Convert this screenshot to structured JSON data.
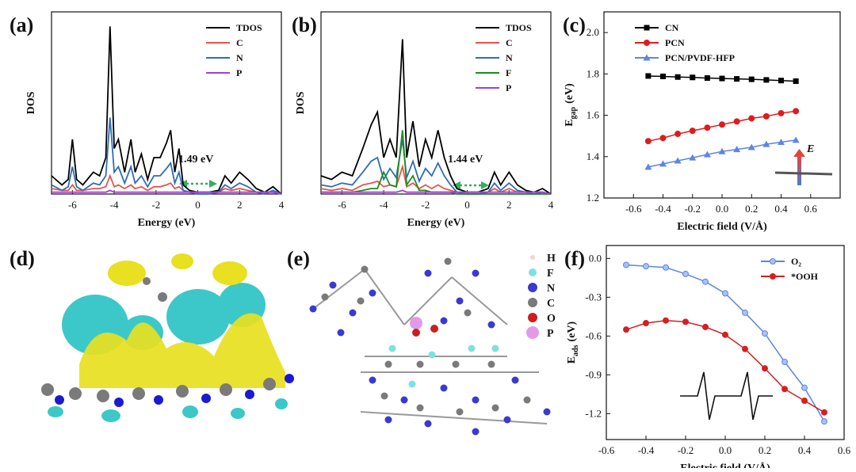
{
  "chart_data": [
    {
      "type": "line",
      "panel_label": "(a)",
      "xlabel": "Energy (eV)",
      "ylabel": "DOS",
      "annotation": "1.49 eV",
      "xlim": [
        -7,
        4
      ],
      "xticks": [
        -6,
        -4,
        -2,
        0,
        2,
        4
      ],
      "ylim": [
        0,
        1
      ],
      "legend": "upper right",
      "x": [
        -7,
        -6.5,
        -6.2,
        -6,
        -5.8,
        -5.5,
        -5,
        -4.7,
        -4.4,
        -4.2,
        -4.0,
        -3.8,
        -3.5,
        -3.2,
        -3,
        -2.7,
        -2.4,
        -2.1,
        -1.8,
        -1.5,
        -1.3,
        -1.1,
        -0.9,
        -0.7,
        -0.4,
        0,
        0.5,
        1,
        1.3,
        1.6,
        2,
        2.4,
        2.8,
        3.2,
        3.6,
        4
      ],
      "series": [
        {
          "name": "TDOS",
          "color": "#000000",
          "values": [
            0.1,
            0.05,
            0.08,
            0.3,
            0.08,
            0.05,
            0.12,
            0.1,
            0.2,
            0.92,
            0.25,
            0.3,
            0.12,
            0.3,
            0.12,
            0.22,
            0.08,
            0.2,
            0.2,
            0.28,
            0.35,
            0.12,
            0.25,
            0.05,
            0.02,
            0.01,
            0.01,
            0.02,
            0.1,
            0.06,
            0.12,
            0.08,
            0.03,
            0.01,
            0.04,
            0.0
          ]
        },
        {
          "name": "C",
          "color": "#e8534a",
          "values": [
            0.03,
            0.02,
            0.02,
            0.05,
            0.02,
            0.02,
            0.03,
            0.03,
            0.04,
            0.1,
            0.04,
            0.05,
            0.03,
            0.05,
            0.03,
            0.04,
            0.02,
            0.04,
            0.04,
            0.05,
            0.06,
            0.03,
            0.04,
            0.02,
            0.01,
            0.01,
            0.01,
            0.01,
            0.03,
            0.02,
            0.03,
            0.02,
            0.01,
            0.01,
            0.01,
            0.0
          ]
        },
        {
          "name": "N",
          "color": "#2e6db8",
          "values": [
            0.05,
            0.02,
            0.04,
            0.15,
            0.04,
            0.02,
            0.06,
            0.05,
            0.1,
            0.42,
            0.12,
            0.15,
            0.06,
            0.15,
            0.06,
            0.1,
            0.04,
            0.1,
            0.1,
            0.14,
            0.17,
            0.06,
            0.12,
            0.02,
            0.01,
            0.0,
            0.0,
            0.01,
            0.05,
            0.03,
            0.06,
            0.04,
            0.01,
            0.0,
            0.02,
            0.0
          ]
        },
        {
          "name": "P",
          "color": "#a23fd6",
          "values": [
            0.01,
            0.01,
            0.01,
            0.01,
            0.01,
            0.01,
            0.01,
            0.01,
            0.01,
            0.02,
            0.01,
            0.01,
            0.01,
            0.01,
            0.01,
            0.01,
            0.01,
            0.01,
            0.01,
            0.01,
            0.01,
            0.01,
            0.01,
            0.01,
            0.01,
            0.01,
            0.01,
            0.01,
            0.01,
            0.01,
            0.01,
            0.01,
            0.01,
            0.01,
            0.01,
            0.0
          ]
        }
      ]
    },
    {
      "type": "line",
      "panel_label": "(b)",
      "xlabel": "Energy (eV)",
      "ylabel": "DOS",
      "annotation": "1.44 eV",
      "xlim": [
        -7,
        4
      ],
      "xticks": [
        -6,
        -4,
        -2,
        0,
        2,
        4
      ],
      "ylim": [
        0,
        1
      ],
      "legend": "upper right",
      "x": [
        -7,
        -6.5,
        -6,
        -5.5,
        -5,
        -4.6,
        -4.3,
        -4,
        -3.7,
        -3.4,
        -3.1,
        -2.9,
        -2.6,
        -2.3,
        -2,
        -1.7,
        -1.4,
        -1.1,
        -0.8,
        -0.5,
        0,
        0.5,
        1,
        1.3,
        1.6,
        2,
        2.4,
        2.8,
        3.2,
        3.6,
        4
      ],
      "series": [
        {
          "name": "TDOS",
          "color": "#000000",
          "values": [
            0.1,
            0.08,
            0.12,
            0.1,
            0.25,
            0.38,
            0.45,
            0.2,
            0.3,
            0.2,
            0.85,
            0.2,
            0.4,
            0.15,
            0.3,
            0.2,
            0.35,
            0.2,
            0.1,
            0.03,
            0.01,
            0.01,
            0.03,
            0.12,
            0.05,
            0.12,
            0.05,
            0.02,
            0.01,
            0.03,
            0.0
          ]
        },
        {
          "name": "C",
          "color": "#e8534a",
          "values": [
            0.03,
            0.02,
            0.03,
            0.02,
            0.05,
            0.06,
            0.07,
            0.04,
            0.05,
            0.04,
            0.15,
            0.04,
            0.06,
            0.03,
            0.05,
            0.03,
            0.05,
            0.03,
            0.02,
            0.01,
            0.01,
            0.01,
            0.01,
            0.03,
            0.01,
            0.03,
            0.01,
            0.01,
            0.01,
            0.01,
            0.0
          ]
        },
        {
          "name": "N",
          "color": "#2e6db8",
          "values": [
            0.05,
            0.04,
            0.06,
            0.05,
            0.12,
            0.18,
            0.2,
            0.08,
            0.14,
            0.09,
            0.3,
            0.09,
            0.18,
            0.07,
            0.14,
            0.1,
            0.17,
            0.1,
            0.05,
            0.01,
            0.0,
            0.0,
            0.01,
            0.06,
            0.02,
            0.06,
            0.02,
            0.01,
            0.0,
            0.01,
            0.0
          ]
        },
        {
          "name": "F",
          "color": "#1e8c1e",
          "values": [
            0.01,
            0.01,
            0.01,
            0.01,
            0.02,
            0.03,
            0.03,
            0.12,
            0.05,
            0.04,
            0.35,
            0.05,
            0.1,
            0.02,
            0.02,
            0.01,
            0.01,
            0.01,
            0.01,
            0.0,
            0.0,
            0.0,
            0.0,
            0.0,
            0.0,
            0.0,
            0.0,
            0.0,
            0.0,
            0.0,
            0.0
          ]
        },
        {
          "name": "P",
          "color": "#a23fd6",
          "values": [
            0.01,
            0.01,
            0.01,
            0.01,
            0.01,
            0.01,
            0.01,
            0.01,
            0.01,
            0.01,
            0.02,
            0.01,
            0.01,
            0.01,
            0.01,
            0.01,
            0.01,
            0.01,
            0.01,
            0.01,
            0.01,
            0.01,
            0.01,
            0.01,
            0.01,
            0.01,
            0.01,
            0.01,
            0.01,
            0.01,
            0.0
          ]
        }
      ]
    },
    {
      "type": "line",
      "panel_label": "(c)",
      "xlabel": "Electric field (V/Å)",
      "ylabel": "E",
      "ylabel_sub": "gap",
      "ylabel_unit": "(eV)",
      "annotation": "E",
      "xlim": [
        -0.8,
        0.8
      ],
      "xticks": [
        -0.6,
        -0.4,
        -0.2,
        {
          "value": 0,
          "label": "0.0"
        },
        0.2,
        0.4,
        0.6
      ],
      "ylim": [
        1.2,
        2.1
      ],
      "yticks": [
        1.2,
        1.4,
        1.6,
        1.8,
        {
          "value": 2,
          "label": "2.0"
        }
      ],
      "legend": "upper center",
      "x": [
        -0.5,
        -0.4,
        -0.3,
        -0.2,
        -0.1,
        0,
        0.1,
        0.2,
        0.3,
        0.4,
        0.5
      ],
      "series": [
        {
          "name": "CN",
          "color": "#000000",
          "marker": "square",
          "values": [
            1.79,
            1.788,
            1.785,
            1.783,
            1.78,
            1.778,
            1.776,
            1.774,
            1.771,
            1.768,
            1.765
          ]
        },
        {
          "name": "PCN",
          "color": "#dd1c1c",
          "marker": "circle",
          "values": [
            1.475,
            1.49,
            1.51,
            1.525,
            1.54,
            1.555,
            1.57,
            1.585,
            1.595,
            1.61,
            1.62
          ]
        },
        {
          "name": "PCN/PVDF-HFP",
          "color": "#5b86e5",
          "marker": "triangle",
          "values": [
            1.35,
            1.365,
            1.38,
            1.395,
            1.41,
            1.425,
            1.435,
            1.445,
            1.46,
            1.47,
            1.48
          ]
        }
      ]
    },
    {
      "type": "line",
      "panel_label": "(f)",
      "xlabel": "Electric field (V/Å)",
      "ylabel": "E",
      "ylabel_sub": "ads",
      "ylabel_unit": "(eV)",
      "xlim": [
        -0.6,
        0.6
      ],
      "xticks": [
        -0.6,
        -0.4,
        -0.2,
        {
          "value": 0,
          "label": "0.0"
        },
        0.2,
        0.4,
        0.6
      ],
      "ylim": [
        -1.4,
        0.1
      ],
      "yticks": [
        {
          "value": 0,
          "label": "0.0"
        },
        -0.3,
        -0.6,
        -0.9,
        -1.2
      ],
      "legend": "upper right",
      "x": [
        -0.5,
        -0.4,
        -0.3,
        -0.2,
        -0.1,
        0,
        0.1,
        0.2,
        0.3,
        0.4,
        0.5
      ],
      "series": [
        {
          "name": "O₂",
          "color": "#5b86e5",
          "marker": "circle",
          "values": [
            -0.05,
            -0.06,
            -0.07,
            -0.12,
            -0.18,
            -0.27,
            -0.42,
            -0.58,
            -0.8,
            -1.0,
            -1.26
          ]
        },
        {
          "name": "*OOH",
          "color": "#d42020",
          "marker": "circle",
          "values": [
            -0.55,
            -0.5,
            -0.48,
            -0.49,
            -0.53,
            -0.59,
            -0.7,
            -0.85,
            -1.01,
            -1.1,
            -1.19
          ]
        }
      ]
    }
  ],
  "images": [
    {
      "panel_label": "(d)"
    },
    {
      "panel_label": "(e)",
      "legend": [
        "H",
        "F",
        "N",
        "C",
        "O",
        "P"
      ]
    }
  ]
}
